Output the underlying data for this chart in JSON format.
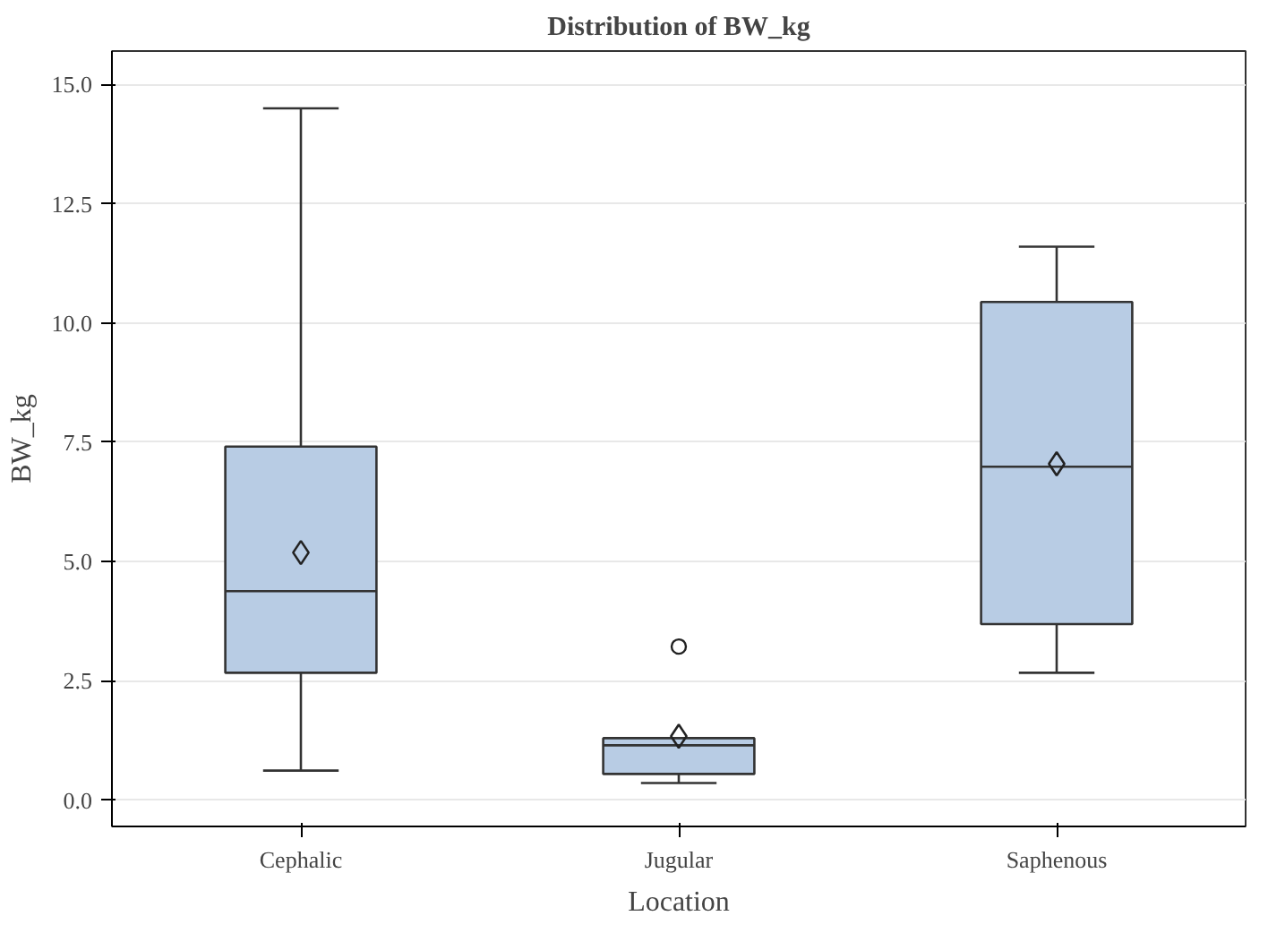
{
  "chart_data": {
    "type": "box",
    "title": "Distribution of BW_kg",
    "xlabel": "Location",
    "ylabel": "BW_kg",
    "categories": [
      "Cephalic",
      "Jugular",
      "Saphenous"
    ],
    "color": "#b8cce4",
    "boxes": [
      {
        "low": 0.62,
        "q1": 2.67,
        "median": 4.38,
        "q3": 7.41,
        "high": 14.5,
        "mean": 5.19
      },
      {
        "low": 0.36,
        "q1": 0.55,
        "median": 1.15,
        "q3": 1.3,
        "high": 1.3,
        "mean": 1.34,
        "outliers": [
          3.22
        ]
      },
      {
        "low": 2.67,
        "q1": 3.69,
        "median": 6.99,
        "q3": 10.44,
        "high": 11.6,
        "mean": 7.05
      }
    ],
    "ylim": [
      -0.55,
      15.7
    ],
    "yticks": [
      {
        "value": 0,
        "label": "0.0"
      },
      {
        "value": 2.5,
        "label": "2.5"
      },
      {
        "value": 5,
        "label": "5.0"
      },
      {
        "value": 7.5,
        "label": "7.5"
      },
      {
        "value": 10,
        "label": "10.0"
      },
      {
        "value": 12.5,
        "label": "12.5"
      },
      {
        "value": 15,
        "label": "15.0"
      }
    ],
    "grid": "y"
  }
}
